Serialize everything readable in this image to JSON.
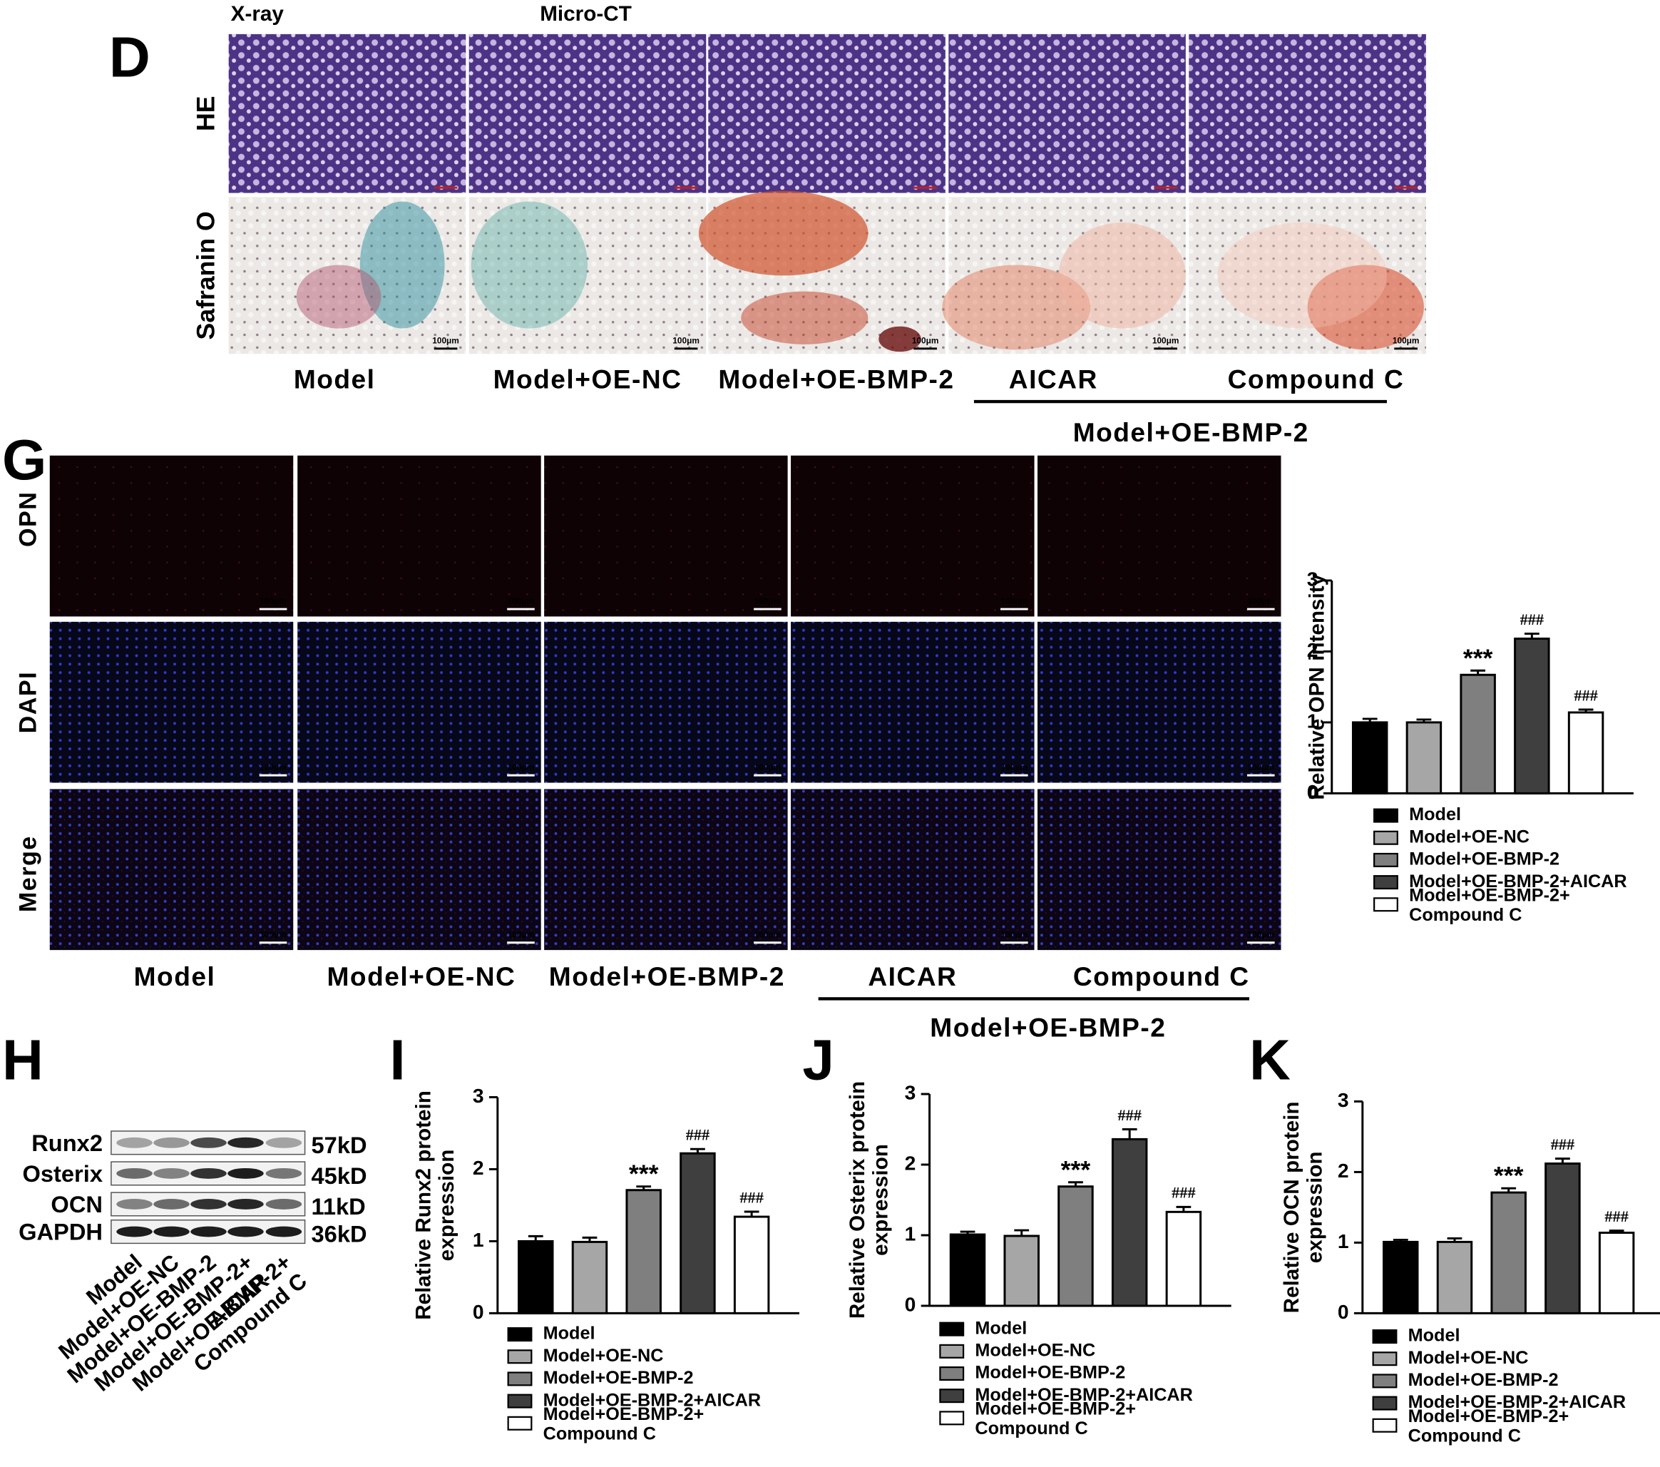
{
  "panels": {
    "D": {
      "label": "D",
      "headers": [
        "X-ray",
        "Micro-CT"
      ],
      "rows": [
        "HE",
        "Safranin O"
      ],
      "columns": [
        "Model",
        "Model+OE-NC",
        "Model+OE-BMP-2",
        "AICAR",
        "Compound C"
      ],
      "group": "Model+OE-BMP-2",
      "scale_bar": "100μm"
    },
    "G": {
      "label": "G",
      "rows": [
        "OPN",
        "DAPI",
        "Merge"
      ],
      "columns": [
        "Model",
        "Model+OE-NC",
        "Model+OE-BMP-2",
        "AICAR",
        "Compound C"
      ],
      "group": "Model+OE-BMP-2",
      "scale_bar": "100μm"
    },
    "H": {
      "label": "H",
      "proteins": [
        "Runx2",
        "Osterix",
        "OCN",
        "GAPDH"
      ],
      "sizes": [
        "57kD",
        "45kD",
        "11kD",
        "36kD"
      ],
      "lanes": [
        "Model",
        "Model+OE-NC",
        "Model+OE-BMP-2",
        "Model+OE-BMP-2+\nAICAR",
        "Model+OE-BMP-2+\nCompound C"
      ]
    }
  },
  "chart_data": [
    {
      "type": "bar",
      "panel": null,
      "ylabel": "Relative OPN intensity",
      "categories": [
        "Model",
        "Model+OE-NC",
        "Model+OE-BMP-2",
        "Model+OE-BMP-2+AICAR",
        "Model+OE-BMP-2+\nCompound C"
      ],
      "values": [
        1.0,
        1.0,
        1.67,
        2.18,
        1.14
      ],
      "errors": [
        0.05,
        0.04,
        0.06,
        0.07,
        0.04
      ],
      "bar_labels": [
        null,
        null,
        "***",
        "###",
        "###"
      ],
      "colors": [
        "#000000",
        "#a6a6a6",
        "#7f7f7f",
        "#3f3f3f",
        "#ffffff"
      ],
      "ylim": [
        0,
        3
      ],
      "yticks": [
        0,
        1,
        2,
        3
      ]
    },
    {
      "type": "bar",
      "panel": "I",
      "ylabel": "Relative Runx2 protein\nexpression",
      "categories": [
        "Model",
        "Model+OE-NC",
        "Model+OE-BMP-2",
        "Model+OE-BMP-2+AICAR",
        "Model+OE-BMP-2+\nCompound C"
      ],
      "values": [
        1.0,
        0.99,
        1.71,
        2.22,
        1.34
      ],
      "errors": [
        0.07,
        0.06,
        0.05,
        0.06,
        0.07
      ],
      "bar_labels": [
        null,
        null,
        "***",
        "###",
        "###"
      ],
      "colors": [
        "#000000",
        "#a6a6a6",
        "#7f7f7f",
        "#3f3f3f",
        "#ffffff"
      ],
      "ylim": [
        0,
        3
      ],
      "yticks": [
        0,
        1,
        2,
        3
      ]
    },
    {
      "type": "bar",
      "panel": "J",
      "ylabel": "Relative Osterix protein\nexpression",
      "categories": [
        "Model",
        "Model+OE-NC",
        "Model+OE-BMP-2",
        "Model+OE-BMP-2+AICAR",
        "Model+OE-BMP-2+\nCompound C"
      ],
      "values": [
        1.01,
        0.99,
        1.69,
        2.36,
        1.33
      ],
      "errors": [
        0.04,
        0.08,
        0.06,
        0.14,
        0.07
      ],
      "bar_labels": [
        null,
        null,
        "***",
        "###",
        "###"
      ],
      "colors": [
        "#000000",
        "#a6a6a6",
        "#7f7f7f",
        "#3f3f3f",
        "#ffffff"
      ],
      "ylim": [
        0,
        3
      ],
      "yticks": [
        0,
        1,
        2,
        3
      ]
    },
    {
      "type": "bar",
      "panel": "K",
      "ylabel": "Relative OCN protein\nexpression",
      "categories": [
        "Model",
        "Model+OE-NC",
        "Model+OE-BMP-2",
        "Model+OE-BMP-2+AICAR",
        "Model+OE-BMP-2+\nCompound C"
      ],
      "values": [
        1.01,
        1.01,
        1.71,
        2.12,
        1.14
      ],
      "errors": [
        0.03,
        0.05,
        0.06,
        0.07,
        0.03
      ],
      "bar_labels": [
        null,
        null,
        "***",
        "###",
        "###"
      ],
      "colors": [
        "#000000",
        "#a6a6a6",
        "#7f7f7f",
        "#3f3f3f",
        "#ffffff"
      ],
      "ylim": [
        0,
        3
      ],
      "yticks": [
        0,
        1,
        2,
        3
      ]
    }
  ]
}
